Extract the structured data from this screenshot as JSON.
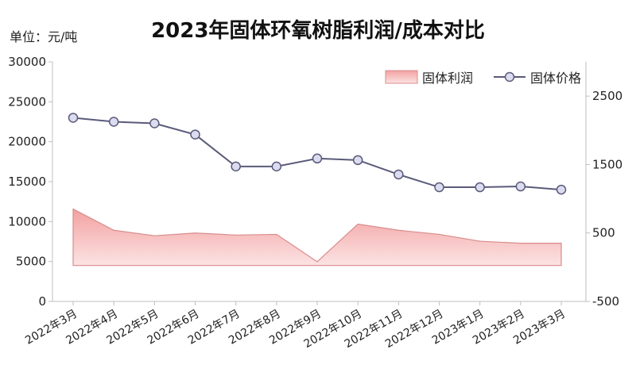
{
  "chart_data": {
    "type": "line",
    "title": "2023年固体环氧树脂利润/成本对比",
    "unit_label": "单位：元/吨",
    "categories": [
      "2022年3月",
      "2022年4月",
      "2022年5月",
      "2022年6月",
      "2022年7月",
      "2022年8月",
      "2022年9月",
      "2022年10月",
      "2022年11月",
      "2022年12月",
      "2023年1月",
      "2023年2月",
      "2023年3月"
    ],
    "left_axis": {
      "ylim": [
        0,
        30000
      ],
      "ticks": [
        "0",
        "5000",
        "10000",
        "15000",
        "20000",
        "25000",
        "30000"
      ]
    },
    "right_axis": {
      "ylim": [
        -500,
        3000
      ],
      "ticks": [
        "-500",
        "500",
        "1500",
        "2500"
      ]
    },
    "series": [
      {
        "name": "固体利润",
        "kind": "area",
        "axis": "right",
        "color": "#f2a5a5",
        "values": [
          850,
          540,
          460,
          500,
          470,
          480,
          80,
          630,
          540,
          480,
          380,
          350,
          350
        ]
      },
      {
        "name": "固体价格",
        "kind": "line",
        "axis": "left",
        "color": "#5a5a7a",
        "values": [
          23000,
          22500,
          22300,
          20900,
          16900,
          16900,
          17900,
          17700,
          15900,
          14300,
          14300,
          14400,
          14000
        ]
      }
    ],
    "legend": {
      "placement": "top-right"
    },
    "grid": false
  }
}
